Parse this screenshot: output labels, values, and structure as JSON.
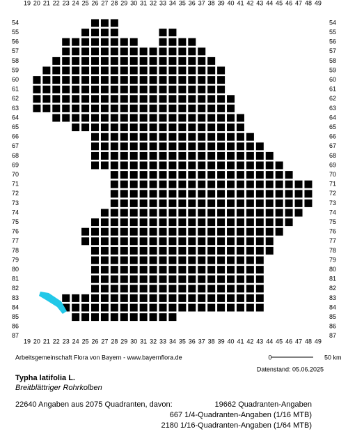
{
  "map": {
    "x_labels": [
      19,
      20,
      21,
      22,
      23,
      24,
      25,
      26,
      27,
      28,
      29,
      30,
      31,
      32,
      33,
      34,
      35,
      36,
      37,
      38,
      39,
      40,
      41,
      42,
      43,
      44,
      45,
      46,
      47,
      48,
      49
    ],
    "y_labels": [
      54,
      55,
      56,
      57,
      58,
      59,
      60,
      61,
      62,
      63,
      64,
      65,
      66,
      67,
      68,
      69,
      70,
      71,
      72,
      73,
      74,
      75,
      76,
      77,
      78,
      79,
      80,
      81,
      82,
      83,
      84,
      85,
      86,
      87
    ],
    "grid_rows": [
      {
        "row": 54,
        "spans": [
          [
            26,
            28
          ]
        ]
      },
      {
        "row": 55,
        "spans": [
          [
            25,
            28
          ],
          [
            33,
            34
          ]
        ]
      },
      {
        "row": 56,
        "spans": [
          [
            23,
            30
          ],
          [
            33,
            36
          ]
        ]
      },
      {
        "row": 57,
        "spans": [
          [
            23,
            37
          ]
        ]
      },
      {
        "row": 58,
        "spans": [
          [
            22,
            38
          ]
        ]
      },
      {
        "row": 59,
        "spans": [
          [
            21,
            39
          ]
        ]
      },
      {
        "row": 60,
        "spans": [
          [
            20,
            39
          ]
        ]
      },
      {
        "row": 61,
        "spans": [
          [
            20,
            39
          ]
        ]
      },
      {
        "row": 62,
        "spans": [
          [
            20,
            40
          ]
        ]
      },
      {
        "row": 63,
        "spans": [
          [
            20,
            40
          ]
        ]
      },
      {
        "row": 64,
        "spans": [
          [
            22,
            41
          ]
        ]
      },
      {
        "row": 65,
        "spans": [
          [
            24,
            41
          ]
        ]
      },
      {
        "row": 66,
        "spans": [
          [
            26,
            42
          ]
        ]
      },
      {
        "row": 67,
        "spans": [
          [
            26,
            43
          ]
        ]
      },
      {
        "row": 68,
        "spans": [
          [
            26,
            44
          ]
        ]
      },
      {
        "row": 69,
        "spans": [
          [
            26,
            45
          ]
        ]
      },
      {
        "row": 70,
        "spans": [
          [
            28,
            46
          ]
        ]
      },
      {
        "row": 71,
        "spans": [
          [
            28,
            48
          ]
        ]
      },
      {
        "row": 72,
        "spans": [
          [
            28,
            48
          ]
        ]
      },
      {
        "row": 73,
        "spans": [
          [
            28,
            48
          ]
        ]
      },
      {
        "row": 74,
        "spans": [
          [
            27,
            47
          ]
        ]
      },
      {
        "row": 75,
        "spans": [
          [
            26,
            46
          ]
        ]
      },
      {
        "row": 76,
        "spans": [
          [
            25,
            45
          ]
        ]
      },
      {
        "row": 77,
        "spans": [
          [
            25,
            44
          ]
        ]
      },
      {
        "row": 78,
        "spans": [
          [
            26,
            44
          ]
        ]
      },
      {
        "row": 79,
        "spans": [
          [
            26,
            43
          ]
        ]
      },
      {
        "row": 80,
        "spans": [
          [
            26,
            43
          ]
        ]
      },
      {
        "row": 81,
        "spans": [
          [
            26,
            43
          ]
        ]
      },
      {
        "row": 82,
        "spans": [
          [
            26,
            43
          ]
        ]
      },
      {
        "row": 83,
        "spans": [
          [
            23,
            43
          ]
        ]
      },
      {
        "row": 84,
        "spans": [
          [
            23,
            43
          ]
        ]
      },
      {
        "row": 85,
        "spans": [
          [
            24,
            34
          ]
        ]
      }
    ]
  },
  "footer": {
    "credit": "Arbeitsgemeinschaft Flora von Bayern - www.bayernflora.de",
    "scale_start": "0",
    "scale_end": "50 km",
    "date": "Datenstand: 05.06.2025",
    "title": "Typha latifolia L.",
    "subtitle": "Breitblättriger Rohrkolben",
    "summary": "22640 Angaben aus 2075 Quadranten, davon:",
    "stats": [
      "19662 Quadranten-Angaben",
      "667 1/4-Quadranten-Angaben (1/16 MTB)",
      "2180 1/16-Quadranten-Angaben (1/64 MTB)"
    ]
  }
}
